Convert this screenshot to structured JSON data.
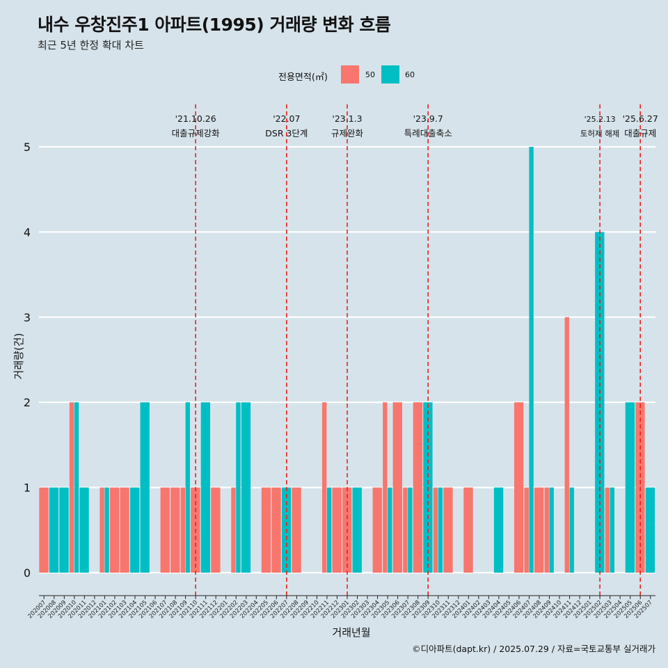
{
  "title": "내수 우창진주1 아파트(1995) 거래량 변화 흐름",
  "subtitle": "최근 5년 한정 확대 차트",
  "caption": "©디아파트(dapt.kr) / 2025.07.29 / 자료=국토교통부 실거래가",
  "chart_data": {
    "type": "bar",
    "xlabel": "거래년월",
    "ylabel": "거래량(건)",
    "ylim": [
      0,
      5
    ],
    "yticks": [
      0,
      1,
      2,
      3,
      4,
      5
    ],
    "grid": true,
    "legend": {
      "title": "전용면적(㎡)",
      "position": "top",
      "items": [
        {
          "label": "50",
          "color": "#f8766d"
        },
        {
          "label": "60",
          "color": "#00bfc4"
        }
      ]
    },
    "categories": [
      "202007",
      "202008",
      "202009",
      "202010",
      "202011",
      "202012",
      "202101",
      "202102",
      "202103",
      "202104",
      "202105",
      "202106",
      "202107",
      "202108",
      "202109",
      "202110",
      "202111",
      "202112",
      "202201",
      "202202",
      "202203",
      "202204",
      "202205",
      "202206",
      "202207",
      "202208",
      "202209",
      "202210",
      "202211",
      "202212",
      "202301",
      "202302",
      "202303",
      "202304",
      "202305",
      "202306",
      "202307",
      "202308",
      "202309",
      "202310",
      "202311",
      "202312",
      "202401",
      "202402",
      "202403",
      "202404",
      "202405",
      "202406",
      "202407",
      "202408",
      "202409",
      "202410",
      "202411",
      "202412",
      "202501",
      "202502",
      "202503",
      "202504",
      "202505",
      "202506",
      "202507"
    ],
    "series": [
      {
        "name": "50",
        "color": "#f8766d",
        "values": [
          1,
          0,
          0,
          2,
          0,
          0,
          1,
          1,
          1,
          0,
          0,
          0,
          1,
          1,
          1,
          1,
          0,
          1,
          0,
          1,
          0,
          0,
          1,
          1,
          0,
          1,
          0,
          0,
          2,
          1,
          1,
          0,
          0,
          1,
          2,
          2,
          1,
          2,
          0,
          1,
          1,
          0,
          1,
          0,
          0,
          0,
          0,
          2,
          1,
          1,
          1,
          0,
          3,
          0,
          0,
          0,
          1,
          0,
          0,
          2,
          0
        ]
      },
      {
        "name": "60",
        "color": "#00bfc4",
        "values": [
          0,
          1,
          1,
          2,
          1,
          0,
          1,
          0,
          0,
          1,
          2,
          0,
          0,
          0,
          2,
          0,
          2,
          0,
          0,
          2,
          2,
          0,
          0,
          0,
          1,
          0,
          0,
          0,
          1,
          0,
          0,
          1,
          0,
          0,
          1,
          0,
          1,
          0,
          2,
          1,
          0,
          0,
          0,
          0,
          0,
          1,
          0,
          0,
          5,
          0,
          1,
          0,
          1,
          0,
          0,
          4,
          1,
          0,
          2,
          0,
          1
        ]
      }
    ],
    "annotations": [
      {
        "date": "'21.10.26",
        "label": "대출규제강화",
        "category": "202110"
      },
      {
        "date": "'22.07",
        "label": "DSR 3단계",
        "category": "202207"
      },
      {
        "date": "'23.1.3",
        "label": "규제완화",
        "category": "202301"
      },
      {
        "date": "'23.9.7",
        "label": "특례대출축소",
        "category": "202309"
      },
      {
        "date": "'25.2.13",
        "label": "토허제 해제",
        "category": "202502"
      },
      {
        "date": "'25.6.27",
        "label": "대출규제",
        "category": "202506"
      }
    ]
  }
}
